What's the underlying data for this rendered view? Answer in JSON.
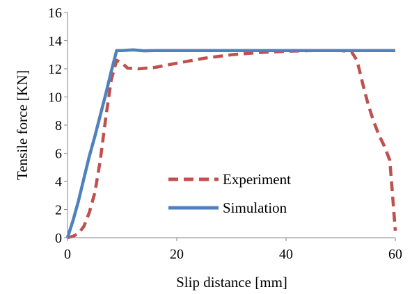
{
  "chart_data": {
    "type": "line",
    "xlabel": "Slip distance [mm]",
    "ylabel": "Tensile force [KN]",
    "xlim": [
      0,
      60
    ],
    "ylim": [
      0,
      16
    ],
    "x_ticks": [
      "0",
      "20",
      "40",
      "60"
    ],
    "y_ticks": [
      "0",
      "2",
      "4",
      "6",
      "8",
      "10",
      "12",
      "14",
      "16"
    ],
    "grid": false,
    "legend_position": "center",
    "series": [
      {
        "name": "Experiment",
        "color": "#c0504d",
        "style": "dashed",
        "points": [
          [
            0,
            0
          ],
          [
            1,
            0.1
          ],
          [
            2,
            0.3
          ],
          [
            3,
            0.8
          ],
          [
            4,
            1.8
          ],
          [
            5,
            3.2
          ],
          [
            6,
            5.5
          ],
          [
            7,
            8.5
          ],
          [
            8,
            11.2
          ],
          [
            9,
            12.6
          ],
          [
            10,
            12.4
          ],
          [
            11,
            12.05
          ],
          [
            13,
            12.0
          ],
          [
            16,
            12.1
          ],
          [
            20,
            12.4
          ],
          [
            25,
            12.75
          ],
          [
            30,
            13.0
          ],
          [
            35,
            13.15
          ],
          [
            40,
            13.25
          ],
          [
            45,
            13.3
          ],
          [
            50,
            13.3
          ],
          [
            52,
            13.2
          ],
          [
            53,
            12.6
          ],
          [
            54,
            11.0
          ],
          [
            55,
            9.5
          ],
          [
            56,
            8.3
          ],
          [
            57,
            7.3
          ],
          [
            58,
            6.5
          ],
          [
            59,
            5.5
          ],
          [
            59.5,
            3.0
          ],
          [
            60,
            0.5
          ]
        ]
      },
      {
        "name": "Simulation",
        "color": "#4f81bd",
        "style": "solid",
        "points": [
          [
            0,
            0
          ],
          [
            1,
            1.2
          ],
          [
            2,
            2.6
          ],
          [
            3,
            4.2
          ],
          [
            4,
            5.8
          ],
          [
            5,
            7.2
          ],
          [
            6,
            8.7
          ],
          [
            7,
            10.2
          ],
          [
            8,
            11.8
          ],
          [
            9,
            13.3
          ],
          [
            10,
            13.3
          ],
          [
            12,
            13.35
          ],
          [
            14,
            13.28
          ],
          [
            16,
            13.3
          ],
          [
            20,
            13.3
          ],
          [
            25,
            13.3
          ],
          [
            30,
            13.3
          ],
          [
            35,
            13.3
          ],
          [
            40,
            13.3
          ],
          [
            45,
            13.3
          ],
          [
            50,
            13.3
          ],
          [
            55,
            13.3
          ],
          [
            60,
            13.3
          ]
        ]
      }
    ]
  }
}
